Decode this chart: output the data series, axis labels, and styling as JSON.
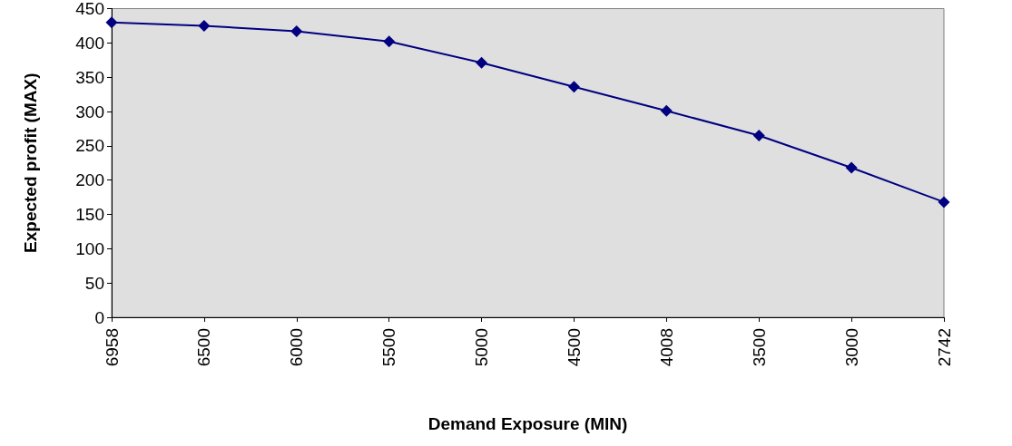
{
  "chart_data": {
    "type": "line",
    "xlabel": "Demand Exposure (MIN)",
    "ylabel": "Expected profit (MAX)",
    "categories": [
      "6958",
      "6500",
      "6000",
      "5500",
      "5000",
      "4500",
      "4008",
      "3500",
      "3000",
      "2742"
    ],
    "series": [
      {
        "color": "#000080",
        "values": [
          430,
          425,
          417,
          402,
          371,
          336,
          301,
          265,
          218,
          168
        ]
      }
    ],
    "ylim": [
      0,
      450
    ],
    "yticks": [
      0,
      50,
      100,
      150,
      200,
      250,
      300,
      350,
      400,
      450
    ],
    "grid": false,
    "marker": "diamond",
    "line_style": "solid"
  }
}
